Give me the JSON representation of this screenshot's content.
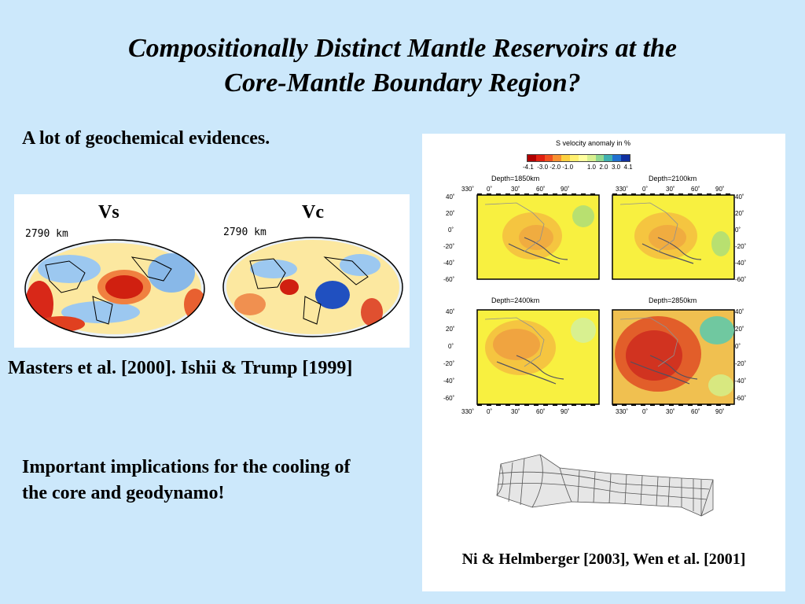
{
  "title": {
    "line1": "Compositionally Distinct Mantle Reservoirs at the",
    "line2": "Core-Mantle Boundary Region?"
  },
  "evidence_text": "A lot of geochemical evidences.",
  "left_figure": {
    "vs_label": "Vs",
    "vc_label": "Vc",
    "depth_left": "2790 km",
    "depth_right": "2790 km",
    "caption": "Masters et al. [2000]. Ishii & Trump [1999]"
  },
  "right_figure": {
    "colorbar_title": "S velocity anomaly in %",
    "colorbar_ticks": "-4.1  -3.0 -2.0 -1.0        1.0  2.0  3.0  4.1",
    "colorbar_colors": [
      "#b00000",
      "#e02010",
      "#f05020",
      "#f89030",
      "#fcd040",
      "#fff070",
      "#ffffa0",
      "#d8f090",
      "#90d890",
      "#40b0b0",
      "#2070d0",
      "#1030a0"
    ],
    "maps": [
      {
        "depth_label": "Depth=1850km"
      },
      {
        "depth_label": "Depth=2100km"
      },
      {
        "depth_label": "Depth=2400km"
      },
      {
        "depth_label": "Depth=2850km"
      }
    ],
    "lon_ticks": [
      "330˚",
      "0˚",
      "30˚",
      "60˚",
      "90˚"
    ],
    "lat_ticks": [
      "40˚",
      "20˚",
      "0˚",
      "-20˚",
      "-40˚",
      "-60˚"
    ],
    "caption": "Ni & Helmberger [2003], Wen et al. [2001]"
  },
  "implications_text": {
    "line1": "Important implications for the cooling of",
    "line2": "the core and geodynamo!"
  }
}
